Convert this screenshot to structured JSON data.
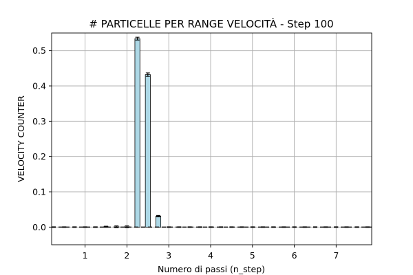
{
  "chart_data": {
    "type": "bar",
    "title": "# PARTICELLE PER RANGE VELOCITÀ - Step 100",
    "xlabel": "Numero di passi (n_step)",
    "ylabel": "VELOCITY COUNTER",
    "xlim": [
      0.2,
      7.85
    ],
    "ylim": [
      -0.05,
      0.55
    ],
    "xticks": [
      1,
      2,
      3,
      4,
      5,
      6,
      7
    ],
    "yticks": [
      0.0,
      0.1,
      0.2,
      0.3,
      0.4,
      0.5
    ],
    "ytick_labels": [
      "0.0",
      "0.1",
      "0.2",
      "0.3",
      "0.4",
      "0.5"
    ],
    "grid": true,
    "bar_width": 0.12,
    "bar_color": "#add8e6",
    "x": [
      0.25,
      0.5,
      0.75,
      1.0,
      1.25,
      1.5,
      1.75,
      2.0,
      2.25,
      2.5,
      2.75,
      3.0,
      3.25,
      3.5,
      3.75,
      4.0,
      4.25,
      4.5,
      4.75,
      5.0,
      5.25,
      5.5,
      5.75,
      6.0,
      6.25,
      6.5,
      6.75,
      7.0,
      7.25,
      7.5,
      7.75
    ],
    "values": [
      0.0,
      0.0,
      0.0,
      0.0,
      0.0,
      0.001,
      0.001,
      0.001,
      0.534,
      0.432,
      0.031,
      0.0,
      0.0,
      0.0,
      0.0,
      0.0,
      0.0,
      0.0,
      0.0,
      0.0,
      0.0,
      0.0,
      0.0,
      0.0,
      0.0,
      0.0,
      0.0,
      0.0,
      0.0,
      0.0,
      0.0
    ],
    "errors": [
      0.0008,
      0.0008,
      0.0008,
      0.0008,
      0.0008,
      0.0015,
      0.0025,
      0.0025,
      0.004,
      0.005,
      0.002,
      0.0008,
      0.0008,
      0.0008,
      0.0008,
      0.0008,
      0.0008,
      0.0008,
      0.0008,
      0.0008,
      0.0008,
      0.0008,
      0.0008,
      0.0008,
      0.0008,
      0.0008,
      0.0008,
      0.0008,
      0.0008,
      0.0008,
      0.0008
    ],
    "reference_line": {
      "y": 0.0,
      "style": "dashed",
      "color": "#000000"
    }
  }
}
